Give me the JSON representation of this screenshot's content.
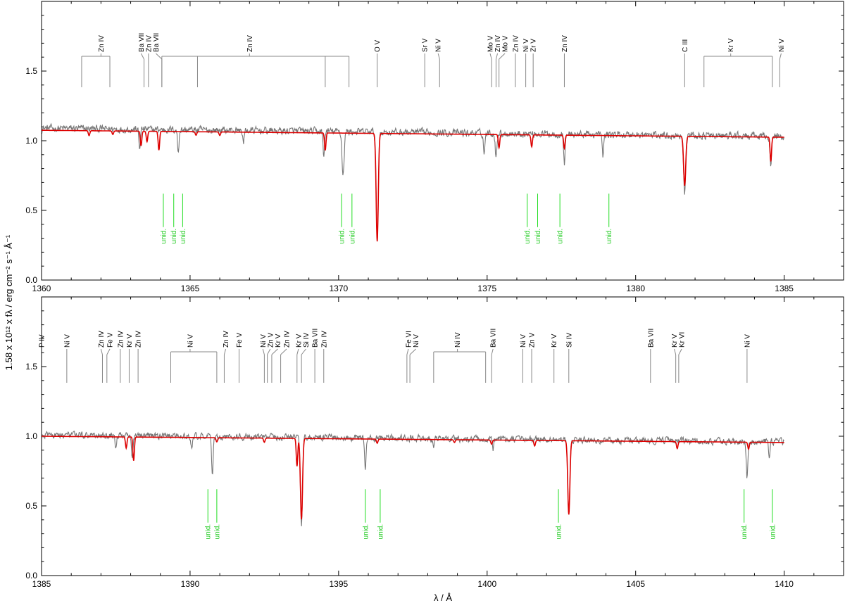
{
  "figure": {
    "xlabel": "λ / Å",
    "ylabel": "1.58 x 10¹² x fλ / erg cm⁻² s⁻¹ Å⁻¹",
    "colors": {
      "observation": "#777777",
      "model": "#dd0000",
      "ion_marks": "#888888",
      "unid_marks": "#22dd22"
    }
  },
  "chart_data": [
    {
      "type": "line",
      "panel": "top",
      "xlim": [
        1360,
        1387
      ],
      "ylim": [
        0.0,
        2.0
      ],
      "xticks": [
        1360,
        1365,
        1370,
        1375,
        1380,
        1385
      ],
      "yticks": [
        0.0,
        0.5,
        1.0,
        1.5
      ],
      "ytick_labels": [
        "0.0",
        "0.5",
        "1.0",
        "1.5"
      ],
      "x_range": [
        1360,
        1385
      ],
      "series": [
        {
          "role": "observation",
          "continuum": 1.09,
          "continuum_end": 1.03,
          "noise": 0.04,
          "features": [
            [
              1363.3,
              0.95
            ],
            [
              1364.6,
              0.93
            ],
            [
              1366.8,
              1.0
            ],
            [
              1369.5,
              0.9
            ],
            [
              1370.15,
              0.78
            ],
            [
              1371.3,
              0.3
            ],
            [
              1374.9,
              0.94
            ],
            [
              1375.3,
              0.9
            ],
            [
              1377.6,
              0.88
            ],
            [
              1378.9,
              0.93
            ],
            [
              1381.65,
              0.67
            ],
            [
              1384.55,
              0.86
            ]
          ]
        },
        {
          "role": "model",
          "continuum": 1.075,
          "continuum_end": 1.025,
          "features": [
            [
              1361.6,
              1.04
            ],
            [
              1362.4,
              1.05
            ],
            [
              1363.35,
              0.97
            ],
            [
              1363.55,
              1.0
            ],
            [
              1363.95,
              0.94
            ],
            [
              1365.2,
              1.05
            ],
            [
              1366.0,
              1.05
            ],
            [
              1369.55,
              0.95
            ],
            [
              1371.3,
              0.3
            ],
            [
              1375.4,
              0.98
            ],
            [
              1376.5,
              0.99
            ],
            [
              1377.6,
              0.98
            ],
            [
              1381.65,
              0.72
            ],
            [
              1384.55,
              0.9
            ]
          ]
        }
      ],
      "ion_labels": [
        {
          "text": "Zn IV",
          "x": 1362.0,
          "lines": [
            1361.35,
            1362.3
          ]
        },
        {
          "text": "Ba VII",
          "x": 1363.35,
          "lines": [
            1363.45
          ]
        },
        {
          "text": "Zn IV",
          "x": 1363.6,
          "lines": [
            1363.6
          ]
        },
        {
          "text": "Ba VII",
          "x": 1363.85,
          "lines": [
            1364.05
          ]
        },
        {
          "text": "Zn IV",
          "x": 1367.0,
          "lines": [
            1364.05,
            1365.25,
            1369.55,
            1370.35
          ]
        },
        {
          "text": "O V",
          "x": 1371.3,
          "lines": [
            1371.3
          ]
        },
        {
          "text": "Sr V",
          "x": 1372.9,
          "lines": [
            1372.9
          ]
        },
        {
          "text": "Ni V",
          "x": 1373.35,
          "lines": [
            1373.4
          ]
        },
        {
          "text": "Mo V",
          "x": 1375.1,
          "lines": [
            1375.15
          ]
        },
        {
          "text": "Zn IV",
          "x": 1375.35,
          "lines": [
            1375.3
          ]
        },
        {
          "text": "Mo V",
          "x": 1375.6,
          "lines": [
            1375.4
          ]
        },
        {
          "text": "Zn IV",
          "x": 1375.95,
          "lines": [
            1375.95
          ]
        },
        {
          "text": "Ni V",
          "x": 1376.3,
          "lines": [
            1376.3
          ]
        },
        {
          "text": "Zr V",
          "x": 1376.55,
          "lines": [
            1376.55
          ]
        },
        {
          "text": "Zn IV",
          "x": 1377.6,
          "lines": [
            1377.6
          ]
        },
        {
          "text": "C III",
          "x": 1381.65,
          "lines": [
            1381.65
          ]
        },
        {
          "text": "Kr V",
          "x": 1383.2,
          "lines": [
            1382.3,
            1384.6
          ]
        },
        {
          "text": "Ni V",
          "x": 1384.9,
          "lines": [
            1384.85
          ]
        }
      ],
      "unid": [
        1364.1,
        1364.45,
        1364.75,
        1370.1,
        1370.45,
        1376.35,
        1376.7,
        1377.45,
        1379.1
      ]
    },
    {
      "type": "line",
      "panel": "bottom",
      "xlim": [
        1385,
        1412
      ],
      "ylim": [
        0.0,
        2.0
      ],
      "xticks": [
        1385,
        1390,
        1395,
        1400,
        1405,
        1410
      ],
      "yticks": [
        0.0,
        0.5,
        1.0,
        1.5
      ],
      "ytick_labels": [
        "0.0",
        "0.5",
        "1.0",
        "1.5"
      ],
      "x_range": [
        1385,
        1410
      ],
      "series": [
        {
          "role": "observation",
          "continuum": 1.01,
          "continuum_end": 0.96,
          "noise": 0.035,
          "features": [
            [
              1387.5,
              0.93
            ],
            [
              1388.05,
              0.87
            ],
            [
              1390.05,
              0.93
            ],
            [
              1390.75,
              0.72
            ],
            [
              1393.75,
              0.37
            ],
            [
              1395.9,
              0.77
            ],
            [
              1398.2,
              0.93
            ],
            [
              1400.2,
              0.94
            ],
            [
              1402.75,
              0.48
            ],
            [
              1408.75,
              0.75
            ],
            [
              1409.5,
              0.9
            ]
          ]
        },
        {
          "role": "model",
          "continuum": 1.0,
          "continuum_end": 0.955,
          "features": [
            [
              1387.85,
              0.92
            ],
            [
              1388.1,
              0.83
            ],
            [
              1390.9,
              0.97
            ],
            [
              1392.5,
              0.97
            ],
            [
              1393.6,
              0.8
            ],
            [
              1393.75,
              0.42
            ],
            [
              1396.3,
              0.97
            ],
            [
              1398.9,
              0.98
            ],
            [
              1400.15,
              0.97
            ],
            [
              1401.6,
              0.96
            ],
            [
              1402.75,
              0.47
            ],
            [
              1406.4,
              0.95
            ],
            [
              1408.8,
              0.95
            ]
          ]
        }
      ],
      "ion_labels": [
        {
          "text": "P IV",
          "x": 1385.0,
          "lines": []
        },
        {
          "text": "Ni V",
          "x": 1385.85,
          "lines": [
            1385.85
          ]
        },
        {
          "text": "Zn IV",
          "x": 1387.0,
          "lines": [
            1387.05
          ]
        },
        {
          "text": "Fe V",
          "x": 1387.3,
          "lines": [
            1387.2
          ]
        },
        {
          "text": "Zn IV",
          "x": 1387.65,
          "lines": [
            1387.65
          ]
        },
        {
          "text": "Kr V",
          "x": 1387.95,
          "lines": [
            1387.95
          ]
        },
        {
          "text": "Zn IV",
          "x": 1388.25,
          "lines": [
            1388.25
          ]
        },
        {
          "text": "Ni V",
          "x": 1390.0,
          "lines": [
            1389.35,
            1390.9
          ]
        },
        {
          "text": "Zn IV",
          "x": 1391.2,
          "lines": [
            1391.15
          ]
        },
        {
          "text": "Fe V",
          "x": 1391.65,
          "lines": [
            1391.65
          ]
        },
        {
          "text": "Ni V",
          "x": 1392.45,
          "lines": [
            1392.5
          ]
        },
        {
          "text": "Zn V",
          "x": 1392.7,
          "lines": [
            1392.6
          ]
        },
        {
          "text": "Kr V",
          "x": 1392.95,
          "lines": [
            1392.75
          ]
        },
        {
          "text": "Zn IV",
          "x": 1393.25,
          "lines": [
            1393.05
          ]
        },
        {
          "text": "Kr V",
          "x": 1393.65,
          "lines": [
            1393.6
          ]
        },
        {
          "text": "Si IV",
          "x": 1393.9,
          "lines": [
            1393.75
          ]
        },
        {
          "text": "Ba VII",
          "x": 1394.2,
          "lines": [
            1394.2
          ]
        },
        {
          "text": "Zn IV",
          "x": 1394.5,
          "lines": [
            1394.5
          ]
        },
        {
          "text": "Fe VI",
          "x": 1397.35,
          "lines": [
            1397.3
          ]
        },
        {
          "text": "Ni V",
          "x": 1397.6,
          "lines": [
            1397.4
          ]
        },
        {
          "text": "Ni IV",
          "x": 1399.0,
          "lines": [
            1398.2,
            1399.95
          ]
        },
        {
          "text": "Ba VII",
          "x": 1400.2,
          "lines": [
            1400.15
          ]
        },
        {
          "text": "Ni V",
          "x": 1401.2,
          "lines": [
            1401.2
          ]
        },
        {
          "text": "Zn V",
          "x": 1401.5,
          "lines": [
            1401.5
          ]
        },
        {
          "text": "Kr V",
          "x": 1402.25,
          "lines": [
            1402.25
          ]
        },
        {
          "text": "Si IV",
          "x": 1402.75,
          "lines": [
            1402.75
          ]
        },
        {
          "text": "Ba VII",
          "x": 1405.5,
          "lines": [
            1405.5
          ]
        },
        {
          "text": "Kr V",
          "x": 1406.3,
          "lines": [
            1406.35
          ]
        },
        {
          "text": "Kr VI",
          "x": 1406.55,
          "lines": [
            1406.45
          ]
        },
        {
          "text": "Ni V",
          "x": 1408.75,
          "lines": [
            1408.75
          ]
        }
      ],
      "unid": [
        1390.6,
        1390.9,
        1395.9,
        1396.4,
        1402.4,
        1408.65,
        1409.6
      ]
    }
  ]
}
